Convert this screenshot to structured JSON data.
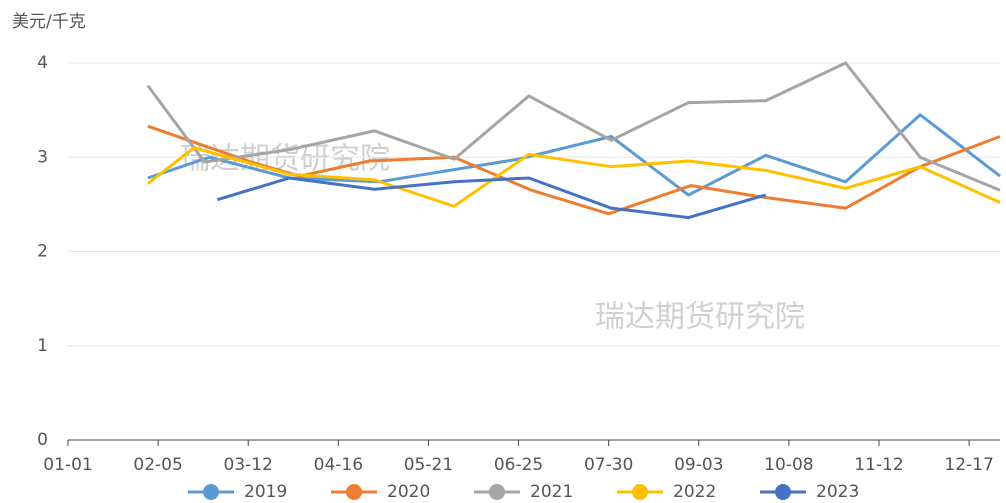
{
  "chart_data": {
    "type": "line",
    "y_label": "美元/千克",
    "annotations": [
      "瑞达期货研究院",
      "瑞达期货研究院"
    ],
    "xlim": [
      0,
      362
    ],
    "ylim": [
      0,
      4
    ],
    "yticks": [
      0,
      1,
      2,
      3,
      4
    ],
    "grid": true,
    "xticks": [
      {
        "value": 0,
        "label": "01-01"
      },
      {
        "value": 35,
        "label": "02-05"
      },
      {
        "value": 70,
        "label": "03-12"
      },
      {
        "value": 105,
        "label": "04-16"
      },
      {
        "value": 140,
        "label": "05-21"
      },
      {
        "value": 175,
        "label": "06-25"
      },
      {
        "value": 210,
        "label": "07-30"
      },
      {
        "value": 245,
        "label": "09-03"
      },
      {
        "value": 280,
        "label": "10-08"
      },
      {
        "value": 315,
        "label": "11-12"
      },
      {
        "value": 350,
        "label": "12-17"
      }
    ],
    "series": [
      {
        "name": "2019",
        "color": "#5b9bd5",
        "x": [
          31,
          55,
          86,
          121,
          175,
          211,
          241,
          271,
          302,
          331,
          362
        ],
        "values": [
          2.78,
          3.0,
          2.78,
          2.74,
          2.98,
          3.22,
          2.6,
          3.02,
          2.74,
          3.45,
          2.8
        ]
      },
      {
        "name": "2020",
        "color": "#ed7d31",
        "x": [
          31,
          71,
          90,
          117,
          150,
          180,
          210,
          242,
          269,
          302,
          331,
          362
        ],
        "values": [
          3.33,
          2.95,
          2.8,
          2.96,
          3.0,
          2.65,
          2.4,
          2.7,
          2.58,
          2.46,
          2.9,
          3.22
        ]
      },
      {
        "name": "2021",
        "color": "#a5a5a5",
        "x": [
          31,
          53,
          86,
          119,
          150,
          179,
          211,
          241,
          271,
          302,
          331,
          362
        ],
        "values": [
          3.76,
          2.95,
          3.08,
          3.28,
          2.98,
          3.65,
          3.18,
          3.58,
          3.6,
          4.0,
          3.0,
          2.65
        ]
      },
      {
        "name": "2022",
        "color": "#ffc000",
        "x": [
          31,
          49,
          86,
          119,
          150,
          179,
          211,
          241,
          271,
          302,
          331,
          362
        ],
        "values": [
          2.72,
          3.1,
          2.82,
          2.76,
          2.48,
          3.03,
          2.9,
          2.96,
          2.86,
          2.67,
          2.9,
          2.52
        ]
      },
      {
        "name": "2023",
        "color": "#4472c4",
        "x": [
          58,
          86,
          119,
          150,
          179,
          211,
          241,
          271
        ],
        "values": [
          2.55,
          2.78,
          2.66,
          2.74,
          2.78,
          2.46,
          2.36,
          2.6
        ]
      }
    ]
  }
}
